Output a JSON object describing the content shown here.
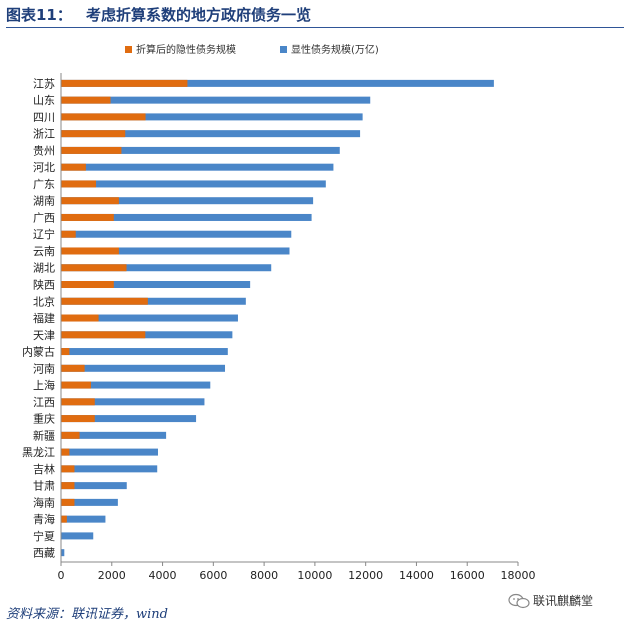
{
  "header": {
    "fig_label": "图表11：",
    "title": "考虑折算系数的地方政府债务一览"
  },
  "chart_data": {
    "type": "bar",
    "orientation": "horizontal",
    "stacked": false,
    "title": "",
    "xlabel": "",
    "ylabel": "",
    "xlim": [
      0,
      18000
    ],
    "xticks": [
      0,
      2000,
      4000,
      6000,
      8000,
      10000,
      12000,
      14000,
      16000,
      18000
    ],
    "grid": false,
    "legend_position": "top",
    "categories": [
      "江苏",
      "山东",
      "四川",
      "浙江",
      "贵州",
      "河北",
      "广东",
      "湖南",
      "广西",
      "辽宁",
      "云南",
      "湖北",
      "陕西",
      "北京",
      "福建",
      "天津",
      "内蒙古",
      "河南",
      "上海",
      "江西",
      "重庆",
      "新疆",
      "黑龙江",
      "吉林",
      "甘肃",
      "海南",
      "青海",
      "宁夏",
      "西藏"
    ],
    "series": [
      {
        "name": "显性债务规模(万亿)",
        "color": "#4a86c8",
        "values": [
          17050,
          12180,
          11880,
          11780,
          10980,
          10730,
          10430,
          9930,
          9870,
          9070,
          9000,
          8280,
          7450,
          7280,
          6970,
          6750,
          6570,
          6460,
          5880,
          5650,
          5320,
          4140,
          3820,
          3790,
          2590,
          2240,
          1750,
          1270,
          130
        ]
      },
      {
        "name": "折算后的隐性债务规模",
        "color": "#e06c10",
        "values": [
          4980,
          1950,
          3330,
          2530,
          2380,
          980,
          1380,
          2280,
          2080,
          580,
          2280,
          2580,
          2080,
          3420,
          1480,
          3320,
          330,
          930,
          1180,
          1330,
          1330,
          730,
          330,
          530,
          530,
          530,
          230,
          0,
          0
        ]
      }
    ]
  },
  "footer": {
    "source": "资料来源：联讯证券，wind",
    "watermark": "联讯麒麟堂",
    "watermark_icon": "wechat-icon"
  }
}
